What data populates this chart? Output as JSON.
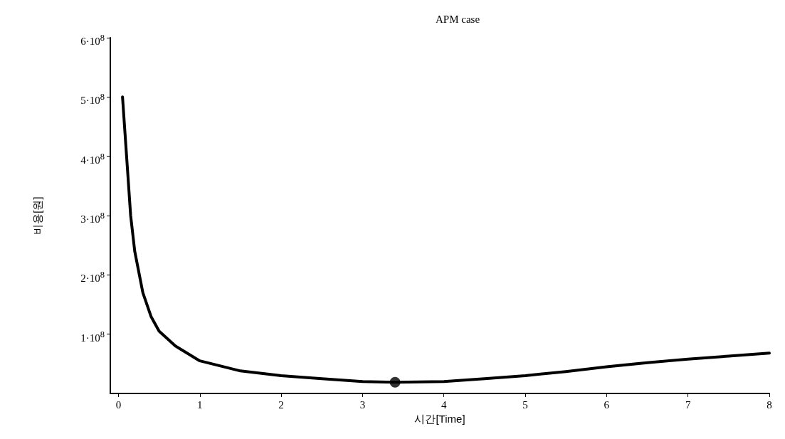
{
  "chart_data": {
    "type": "line",
    "title": "APM case",
    "xlabel": "시간[Time]",
    "ylabel": "비용[원]",
    "xlim": [
      -0.1,
      8
    ],
    "xticks": [
      0,
      1,
      2,
      3,
      4,
      5,
      6,
      7,
      8
    ],
    "ylim": [
      0,
      600000000
    ],
    "yticks": [
      {
        "value": 100000000,
        "label": "1·10$^{8}$"
      },
      {
        "value": 200000000,
        "label": "2·10$^{8}$"
      },
      {
        "value": 300000000,
        "label": "3·10$^{8}$"
      },
      {
        "value": 400000000,
        "label": "4·10$^{8}$"
      },
      {
        "value": 500000000,
        "label": "5·10$^{8}$"
      },
      {
        "value": 600000000,
        "label": "6·10$^{8}$"
      }
    ],
    "grid": false,
    "marker": "none",
    "line_style": "solid",
    "series": [
      {
        "color": "#000000",
        "x": [
          0.05,
          0.1,
          0.15,
          0.2,
          0.3,
          0.4,
          0.5,
          0.7,
          1,
          1.5,
          2,
          2.5,
          3,
          3.4,
          4,
          4.5,
          5,
          5.5,
          6,
          6.5,
          7,
          7.5,
          8
        ],
        "values": [
          500000000,
          400000000,
          300000000,
          240000000,
          170000000,
          130000000,
          105000000,
          80000000,
          55000000,
          38000000,
          30000000,
          25000000,
          20000000,
          19000000,
          20000000,
          25000000,
          30000000,
          37000000,
          45000000,
          52000000,
          58000000,
          63000000,
          68000000
        ]
      },
      {
        "type": "scatter",
        "marker": "circle",
        "color": "#000000",
        "x": [
          3.4
        ],
        "values": [
          19000000
        ]
      }
    ]
  }
}
